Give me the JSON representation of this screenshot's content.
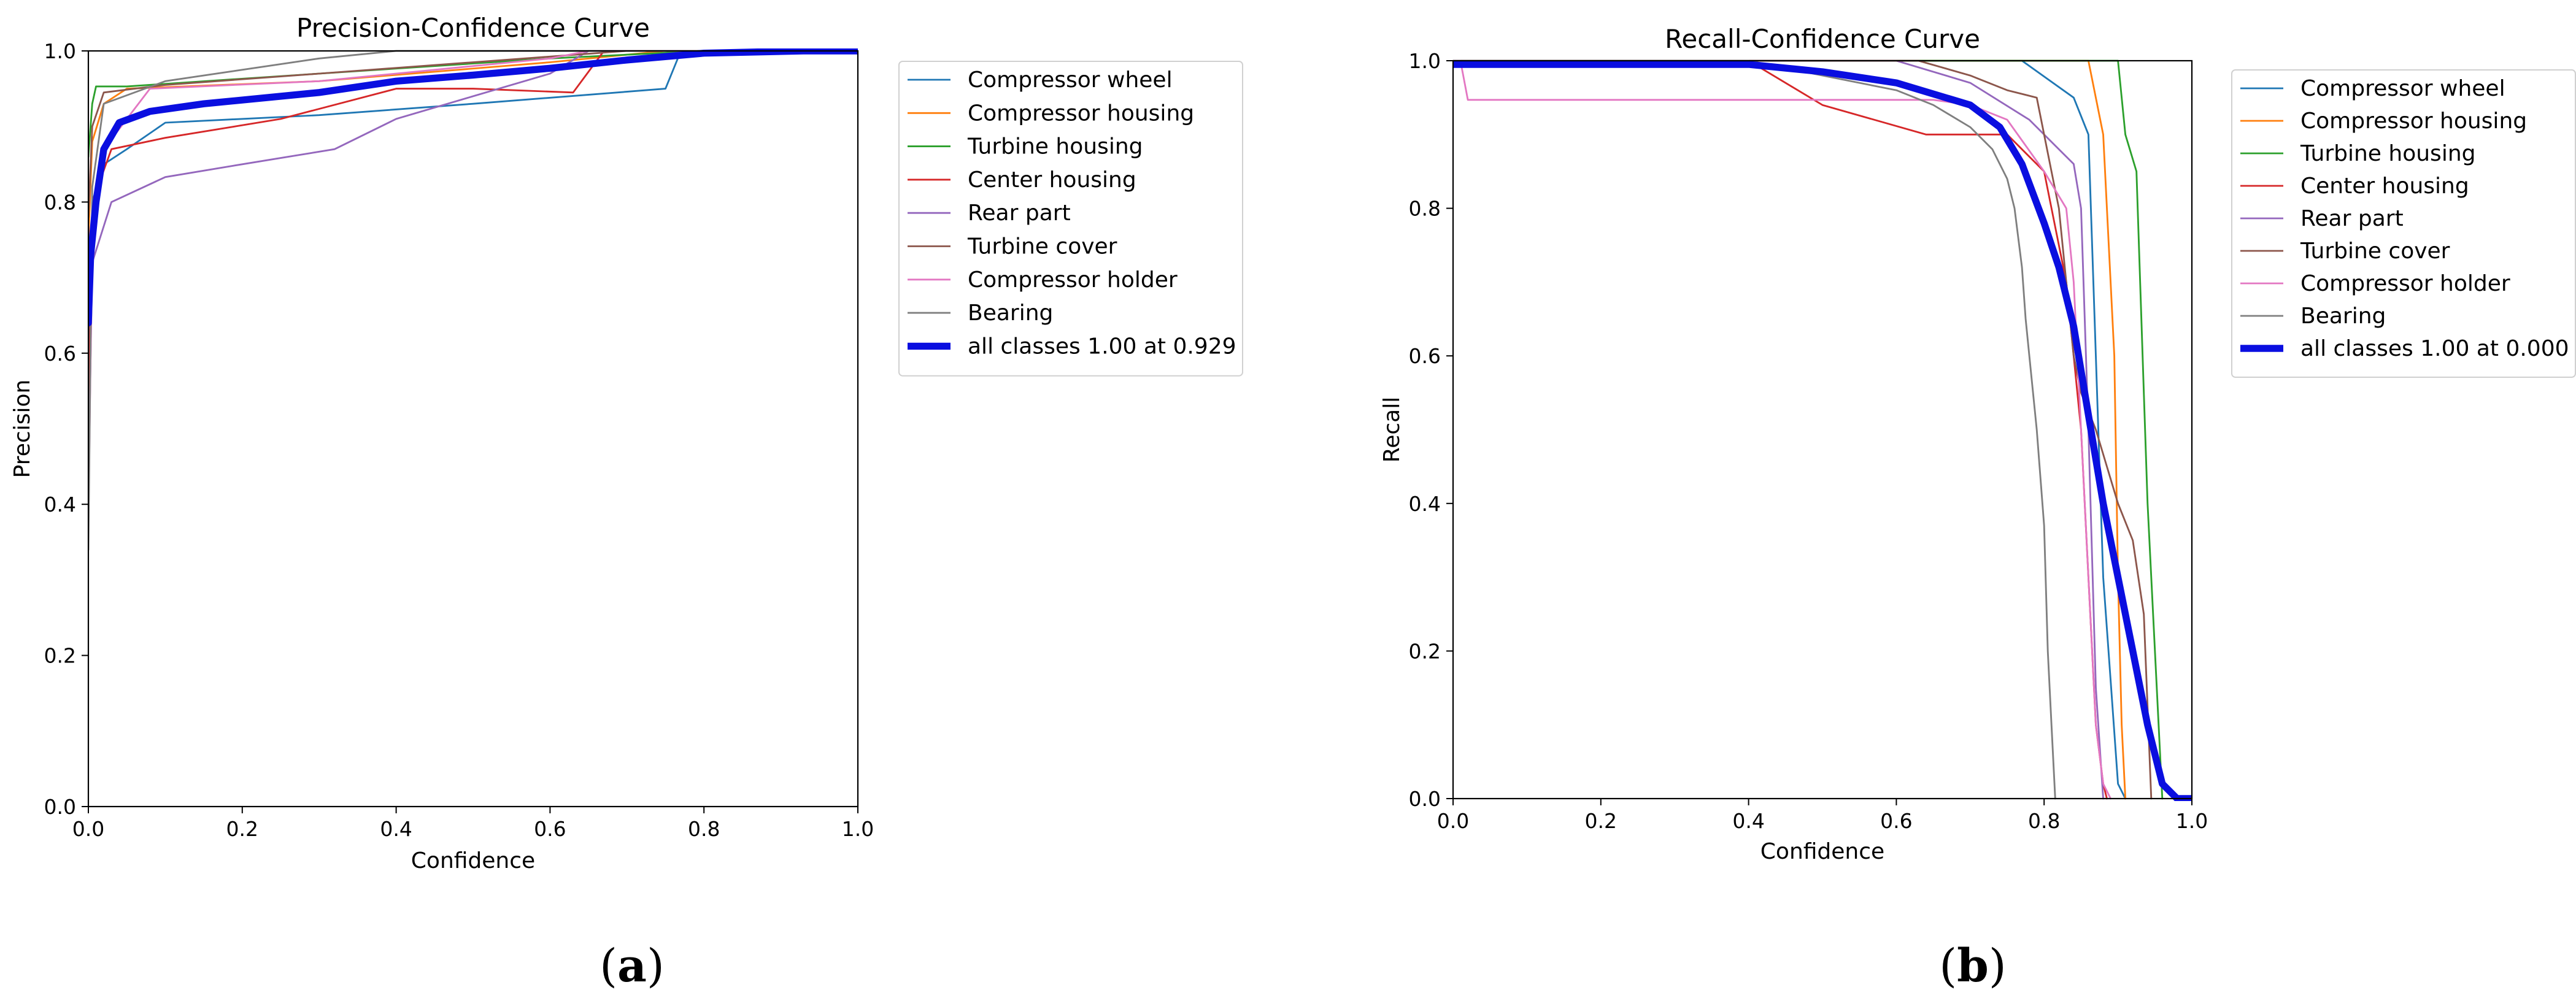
{
  "figure": {
    "caption_a": {
      "open": "(",
      "letter": "a",
      "close": ")"
    },
    "caption_b": {
      "open": "(",
      "letter": "b",
      "close": ")"
    }
  },
  "chart_data": [
    {
      "type": "line",
      "title": "Precision-Confidence Curve",
      "xlabel": "Confidence",
      "ylabel": "Precision",
      "xlim": [
        0,
        1
      ],
      "ylim": [
        0,
        1
      ],
      "xticks": [
        "0.0",
        "0.2",
        "0.4",
        "0.6",
        "0.8",
        "1.0"
      ],
      "yticks": [
        "0.0",
        "0.2",
        "0.4",
        "0.6",
        "0.8",
        "1.0"
      ],
      "grid": false,
      "legend_position": "outside-right",
      "series": [
        {
          "name": "Compressor wheel",
          "color": "#1f77b4",
          "width": 1.5,
          "x": [
            0,
            0.005,
            0.02,
            0.05,
            0.1,
            0.3,
            0.5,
            0.75,
            0.77,
            1.0
          ],
          "y": [
            0.55,
            0.8,
            0.85,
            0.87,
            0.905,
            0.915,
            0.93,
            0.95,
            1.0,
            1.0
          ]
        },
        {
          "name": "Compressor housing",
          "color": "#ff7f0e",
          "width": 1.5,
          "x": [
            0,
            0.005,
            0.02,
            0.05,
            0.3,
            0.6,
            0.75,
            1.0
          ],
          "y": [
            0.75,
            0.88,
            0.93,
            0.95,
            0.96,
            0.985,
            1.0,
            1.0
          ]
        },
        {
          "name": "Turbine housing",
          "color": "#2ca02c",
          "width": 1.5,
          "x": [
            0,
            0.005,
            0.01,
            0.05,
            0.3,
            0.6,
            0.8,
            1.0
          ],
          "y": [
            0.86,
            0.93,
            0.953,
            0.953,
            0.97,
            0.99,
            1.0,
            1.0
          ]
        },
        {
          "name": "Center housing",
          "color": "#d62728",
          "width": 1.5,
          "x": [
            0,
            0.005,
            0.03,
            0.1,
            0.25,
            0.4,
            0.5,
            0.63,
            0.67,
            1.0
          ],
          "y": [
            0.5,
            0.8,
            0.87,
            0.885,
            0.91,
            0.95,
            0.95,
            0.945,
            1.0,
            1.0
          ]
        },
        {
          "name": "Rear part",
          "color": "#9467bd",
          "width": 1.5,
          "x": [
            0,
            0.005,
            0.03,
            0.1,
            0.2,
            0.32,
            0.4,
            0.5,
            0.6,
            0.65,
            1.0
          ],
          "y": [
            0.42,
            0.72,
            0.8,
            0.833,
            0.85,
            0.87,
            0.91,
            0.94,
            0.97,
            1.0,
            1.0
          ]
        },
        {
          "name": "Turbine cover",
          "color": "#8c564b",
          "width": 1.5,
          "x": [
            0,
            0.005,
            0.02,
            0.1,
            0.3,
            0.5,
            0.7,
            1.0
          ],
          "y": [
            0.78,
            0.9,
            0.945,
            0.955,
            0.97,
            0.985,
            1.0,
            1.0
          ]
        },
        {
          "name": "Compressor holder",
          "color": "#e377c2",
          "width": 1.5,
          "x": [
            0,
            0.005,
            0.02,
            0.08,
            0.3,
            0.6,
            0.65,
            1.0
          ],
          "y": [
            0.38,
            0.75,
            0.87,
            0.95,
            0.96,
            0.99,
            1.0,
            1.0
          ]
        },
        {
          "name": "Bearing",
          "color": "#7f7f7f",
          "width": 1.5,
          "x": [
            0,
            0.005,
            0.02,
            0.1,
            0.3,
            0.4,
            1.0
          ],
          "y": [
            0.34,
            0.82,
            0.93,
            0.96,
            0.99,
            1.0,
            1.0
          ]
        },
        {
          "name": "all classes 1.00 at 0.929",
          "color": "#0a0ee0",
          "width": 6,
          "x": [
            0,
            0.003,
            0.01,
            0.02,
            0.04,
            0.08,
            0.15,
            0.3,
            0.4,
            0.5,
            0.6,
            0.7,
            0.8,
            0.929,
            1.0
          ],
          "y": [
            0.64,
            0.73,
            0.8,
            0.87,
            0.905,
            0.92,
            0.93,
            0.945,
            0.96,
            0.968,
            0.977,
            0.988,
            0.997,
            1.0,
            1.0
          ]
        }
      ]
    },
    {
      "type": "line",
      "title": "Recall-Confidence Curve",
      "xlabel": "Confidence",
      "ylabel": "Recall",
      "xlim": [
        0,
        1
      ],
      "ylim": [
        0,
        1
      ],
      "xticks": [
        "0.0",
        "0.2",
        "0.4",
        "0.6",
        "0.8",
        "1.0"
      ],
      "yticks": [
        "0.0",
        "0.2",
        "0.4",
        "0.6",
        "0.8",
        "1.0"
      ],
      "grid": false,
      "legend_position": "outside-right",
      "series": [
        {
          "name": "Compressor wheel",
          "color": "#1f77b4",
          "width": 1.5,
          "x": [
            0,
            0.77,
            0.84,
            0.86,
            0.87,
            0.88,
            0.89,
            0.9,
            0.91
          ],
          "y": [
            1.0,
            1.0,
            0.95,
            0.9,
            0.6,
            0.3,
            0.16,
            0.02,
            0.0
          ]
        },
        {
          "name": "Compressor housing",
          "color": "#ff7f0e",
          "width": 1.5,
          "x": [
            0,
            0.86,
            0.88,
            0.895,
            0.9,
            0.905,
            0.91
          ],
          "y": [
            1.0,
            1.0,
            0.9,
            0.6,
            0.3,
            0.1,
            0.0
          ]
        },
        {
          "name": "Turbine housing",
          "color": "#2ca02c",
          "width": 1.5,
          "x": [
            0,
            0.9,
            0.91,
            0.925,
            0.93,
            0.935,
            0.94,
            0.95,
            0.96
          ],
          "y": [
            1.0,
            1.0,
            0.9,
            0.85,
            0.7,
            0.55,
            0.4,
            0.2,
            0.0
          ]
        },
        {
          "name": "Center housing",
          "color": "#d62728",
          "width": 1.5,
          "x": [
            0,
            0.4,
            0.5,
            0.64,
            0.7,
            0.75,
            0.8,
            0.83,
            0.85,
            0.86,
            0.87,
            0.88,
            0.885
          ],
          "y": [
            1.0,
            1.0,
            0.94,
            0.9,
            0.9,
            0.9,
            0.85,
            0.7,
            0.5,
            0.3,
            0.1,
            0.02,
            0.0
          ]
        },
        {
          "name": "Rear part",
          "color": "#9467bd",
          "width": 1.5,
          "x": [
            0,
            0.6,
            0.7,
            0.78,
            0.82,
            0.84,
            0.85,
            0.86,
            0.87,
            0.88
          ],
          "y": [
            1.0,
            1.0,
            0.97,
            0.92,
            0.88,
            0.86,
            0.8,
            0.5,
            0.15,
            0.0
          ]
        },
        {
          "name": "Turbine cover",
          "color": "#8c564b",
          "width": 1.5,
          "x": [
            0,
            0.63,
            0.7,
            0.75,
            0.79,
            0.8,
            0.81,
            0.82,
            0.83,
            0.84,
            0.85,
            0.87,
            0.885,
            0.9,
            0.92,
            0.935,
            0.945
          ],
          "y": [
            1.0,
            1.0,
            0.98,
            0.96,
            0.95,
            0.9,
            0.85,
            0.8,
            0.7,
            0.6,
            0.55,
            0.5,
            0.45,
            0.4,
            0.35,
            0.25,
            0.0
          ]
        },
        {
          "name": "Compressor holder",
          "color": "#e377c2",
          "width": 1.5,
          "x": [
            0,
            0.01,
            0.02,
            0.35,
            0.65,
            0.7,
            0.75,
            0.8,
            0.83,
            0.84,
            0.85,
            0.86,
            0.87,
            0.88,
            0.89
          ],
          "y": [
            1.0,
            1.0,
            0.947,
            0.947,
            0.947,
            0.94,
            0.92,
            0.85,
            0.8,
            0.7,
            0.5,
            0.3,
            0.1,
            0.02,
            0.0
          ]
        },
        {
          "name": "Bearing",
          "color": "#7f7f7f",
          "width": 1.5,
          "x": [
            0,
            0.4,
            0.5,
            0.6,
            0.65,
            0.7,
            0.73,
            0.75,
            0.76,
            0.77,
            0.775,
            0.78,
            0.79,
            0.8,
            0.805,
            0.81,
            0.815
          ],
          "y": [
            1.0,
            1.0,
            0.98,
            0.96,
            0.94,
            0.91,
            0.88,
            0.84,
            0.8,
            0.72,
            0.65,
            0.6,
            0.5,
            0.37,
            0.2,
            0.1,
            0.0
          ]
        },
        {
          "name": "all classes 1.00 at 0.000",
          "color": "#0a0ee0",
          "width": 6,
          "x": [
            0,
            0.4,
            0.5,
            0.6,
            0.7,
            0.74,
            0.77,
            0.8,
            0.82,
            0.84,
            0.86,
            0.88,
            0.9,
            0.92,
            0.94,
            0.96,
            0.98,
            1.0
          ],
          "y": [
            0.995,
            0.995,
            0.985,
            0.97,
            0.94,
            0.91,
            0.86,
            0.78,
            0.72,
            0.64,
            0.52,
            0.4,
            0.3,
            0.2,
            0.1,
            0.02,
            0.0,
            0.0
          ]
        }
      ]
    }
  ]
}
